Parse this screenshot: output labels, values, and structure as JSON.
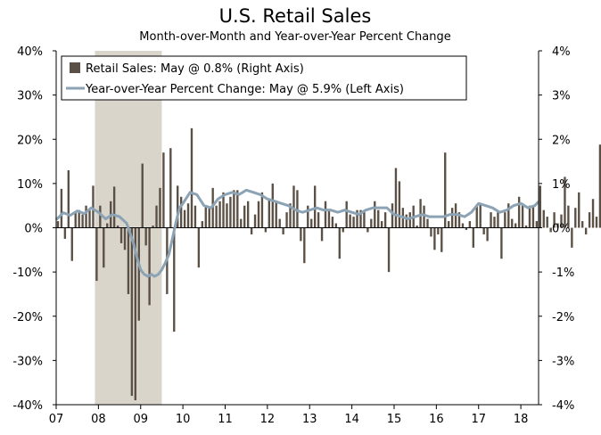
{
  "chart_data": {
    "type": "bar",
    "title": "U.S. Retail Sales",
    "subtitle": "Month-over-Month and Year-over-Year Percent Change",
    "left_axis": {
      "unit": "%",
      "range": [
        -40,
        40
      ],
      "ticks": [
        "40%",
        "30%",
        "20%",
        "10%",
        "0%",
        "-10%",
        "-20%",
        "-30%",
        "-40%"
      ]
    },
    "right_axis": {
      "unit": "%",
      "range": [
        -4,
        4
      ],
      "ticks": [
        "4%",
        "3%",
        "2%",
        "1%",
        "0%",
        "-1%",
        "-2%",
        "-3%",
        "-4%"
      ]
    },
    "x_axis": {
      "range": [
        2007,
        2018.42
      ],
      "ticks": [
        "07",
        "08",
        "09",
        "10",
        "11",
        "12",
        "13",
        "14",
        "15",
        "16",
        "17",
        "18"
      ]
    },
    "recession_shading": [
      2007.917,
      2009.5
    ],
    "legend": [
      {
        "label": "Retail Sales: May @ 0.8% (Right Axis)",
        "type": "bar",
        "color": "#5b5045"
      },
      {
        "label": "Year-over-Year Percent Change: May @ 5.9% (Left Axis)",
        "type": "line",
        "color": "#8ba3b4"
      }
    ],
    "series": [
      {
        "name": "Retail Sales: May @ 0.8% (Right Axis)",
        "axis": "right",
        "type": "bar",
        "start": "2007-01",
        "values": [
          0.15,
          0.88,
          -0.25,
          1.3,
          -0.75,
          0.35,
          0.4,
          0.3,
          0.5,
          0.4,
          0.95,
          -1.2,
          0.5,
          -0.9,
          0.1,
          0.6,
          0.93,
          0.05,
          -0.35,
          -0.5,
          -1.5,
          -3.8,
          -3.9,
          -2.1,
          1.45,
          -0.4,
          -1.75,
          0.05,
          0.5,
          0.9,
          1.7,
          -1.5,
          1.8,
          -2.35,
          0.95,
          0.7,
          0.4,
          0.55,
          2.25,
          0.5,
          -0.9,
          0.15,
          0.5,
          0.45,
          0.9,
          0.5,
          0.6,
          0.8,
          0.55,
          0.7,
          0.85,
          0.85,
          0.2,
          0.5,
          0.6,
          -0.15,
          0.3,
          0.6,
          0.8,
          -0.1,
          0.65,
          1.0,
          0.6,
          0.2,
          -0.15,
          0.35,
          0.55,
          0.95,
          0.85,
          -0.3,
          -0.8,
          0.5,
          0.2,
          0.95,
          0.35,
          -0.3,
          0.6,
          0.4,
          0.25,
          0.1,
          -0.7,
          -0.1,
          0.6,
          0.3,
          0.25,
          0.4,
          0.4,
          0.4,
          -0.1,
          0.2,
          0.6,
          0.4,
          0.15,
          0.35,
          -1.0,
          0.55,
          1.35,
          1.05,
          0.45,
          0.3,
          0.35,
          0.5,
          0.05,
          0.65,
          0.5,
          0.2,
          -0.2,
          -0.5,
          -0.15,
          -0.55,
          1.7,
          0.15,
          0.45,
          0.55,
          0.35,
          0.1,
          -0.05,
          0.15,
          -0.45,
          0.5,
          0.55,
          -0.15,
          -0.3,
          0.35,
          0.25,
          0.35,
          -0.7,
          0.35,
          0.55,
          0.2,
          0.1,
          0.7,
          0.55,
          0.05,
          0.5,
          0.5,
          0.15,
          0.95,
          0.4,
          0.25,
          -0.1,
          0.35,
          0.1,
          0.3,
          1.15,
          0.5,
          -0.45,
          0.45,
          0.8,
          0.15,
          -0.15,
          0.35,
          0.65,
          0.25,
          1.88,
          0.65,
          0.4,
          -0.1,
          -0.15,
          0.15,
          0.6,
          0.8,
          0.35,
          0.8
        ]
      },
      {
        "name": "Year-over-Year Percent Change: May @ 5.9% (Left Axis)",
        "axis": "left",
        "type": "line",
        "x": [
          2007.0,
          2007.17,
          2007.33,
          2007.5,
          2007.67,
          2007.83,
          2008.0,
          2008.17,
          2008.33,
          2008.5,
          2008.67,
          2008.83,
          2008.92,
          2009.0,
          2009.08,
          2009.17,
          2009.25,
          2009.33,
          2009.42,
          2009.5,
          2009.58,
          2009.67,
          2009.75,
          2009.83,
          2009.92,
          2010.0,
          2010.17,
          2010.33,
          2010.5,
          2010.67,
          2010.83,
          2011.0,
          2011.17,
          2011.33,
          2011.5,
          2011.67,
          2011.83,
          2012.0,
          2012.17,
          2012.33,
          2012.5,
          2012.67,
          2012.83,
          2013.0,
          2013.17,
          2013.33,
          2013.5,
          2013.67,
          2013.83,
          2014.0,
          2014.17,
          2014.33,
          2014.5,
          2014.67,
          2014.83,
          2015.0,
          2015.17,
          2015.33,
          2015.5,
          2015.67,
          2015.83,
          2016.0,
          2016.17,
          2016.33,
          2016.5,
          2016.67,
          2016.83,
          2017.0,
          2017.17,
          2017.33,
          2017.5,
          2017.67,
          2017.83,
          2018.0,
          2018.17,
          2018.33,
          2018.42
        ],
        "values": [
          1.8,
          3.4,
          2.8,
          3.8,
          3.2,
          4.5,
          3.5,
          2.0,
          3.0,
          2.5,
          1.0,
          -3.5,
          -7.0,
          -9.5,
          -10.5,
          -11.0,
          -10.5,
          -11.0,
          -10.5,
          -9.5,
          -8.0,
          -6.0,
          -2.5,
          1.0,
          4.5,
          5.5,
          8.0,
          7.5,
          5.0,
          4.5,
          6.5,
          7.5,
          8.0,
          7.5,
          8.5,
          8.0,
          7.5,
          6.5,
          6.0,
          5.5,
          5.0,
          4.0,
          3.5,
          4.0,
          4.5,
          4.0,
          4.0,
          3.5,
          4.0,
          3.5,
          3.0,
          4.0,
          4.5,
          4.5,
          4.5,
          3.0,
          2.5,
          2.0,
          2.5,
          3.0,
          2.5,
          2.5,
          2.5,
          3.0,
          3.0,
          2.5,
          3.5,
          5.5,
          5.0,
          4.5,
          3.5,
          4.0,
          5.0,
          5.5,
          4.5,
          5.0,
          5.9
        ]
      }
    ],
    "grid": false
  }
}
